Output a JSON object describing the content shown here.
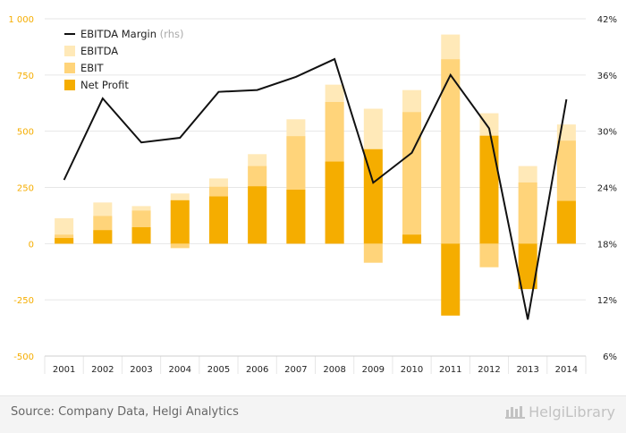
{
  "chart_data": {
    "type": "bar",
    "stacking": "overlapping",
    "categories": [
      "2001",
      "2002",
      "2003",
      "2004",
      "2005",
      "2006",
      "2007",
      "2008",
      "2009",
      "2010",
      "2011",
      "2012",
      "2013",
      "2014"
    ],
    "series": [
      {
        "name": "EBITDA",
        "color": "#ffe9b8",
        "values": [
          113,
          183,
          167,
          223,
          290,
          398,
          553,
          707,
          600,
          683,
          930,
          580,
          345,
          530
        ]
      },
      {
        "name": "EBIT",
        "color": "#ffd47a",
        "values": [
          40,
          123,
          147,
          -20,
          253,
          345,
          478,
          630,
          -85,
          585,
          820,
          -105,
          272,
          458
        ]
      },
      {
        "name": "Net Profit",
        "color": "#f5ad00",
        "values": [
          25,
          60,
          73,
          193,
          210,
          255,
          240,
          365,
          420,
          40,
          -320,
          480,
          -202,
          190
        ]
      },
      {
        "name": "EBITDA Margin",
        "name_suffix": "(rhs)",
        "type": "line",
        "color": "#111111",
        "values": [
          24.8,
          33.5,
          28.8,
          29.3,
          34.2,
          34.4,
          35.8,
          37.7,
          24.5,
          27.7,
          36.0,
          30.3,
          9.9,
          33.4
        ]
      }
    ],
    "left_axis": {
      "ylim": [
        -500,
        1000
      ],
      "ticks": [
        -500,
        -250,
        0,
        250,
        500,
        750,
        1000
      ],
      "tick_labels": [
        "-500",
        "-250",
        "0",
        "250",
        "500",
        "750",
        "1 000"
      ],
      "color": "#f5ad00"
    },
    "right_axis": {
      "ylim": [
        6,
        42
      ],
      "ticks": [
        6,
        12,
        18,
        24,
        30,
        36,
        42
      ],
      "tick_labels": [
        "6%",
        "12%",
        "18%",
        "24%",
        "30%",
        "36%",
        "42%"
      ]
    },
    "grid": true,
    "legend_position": "top-left"
  },
  "footer": {
    "source": "Source: Company Data, Helgi Analytics",
    "brand": "HelgiLibrary"
  }
}
